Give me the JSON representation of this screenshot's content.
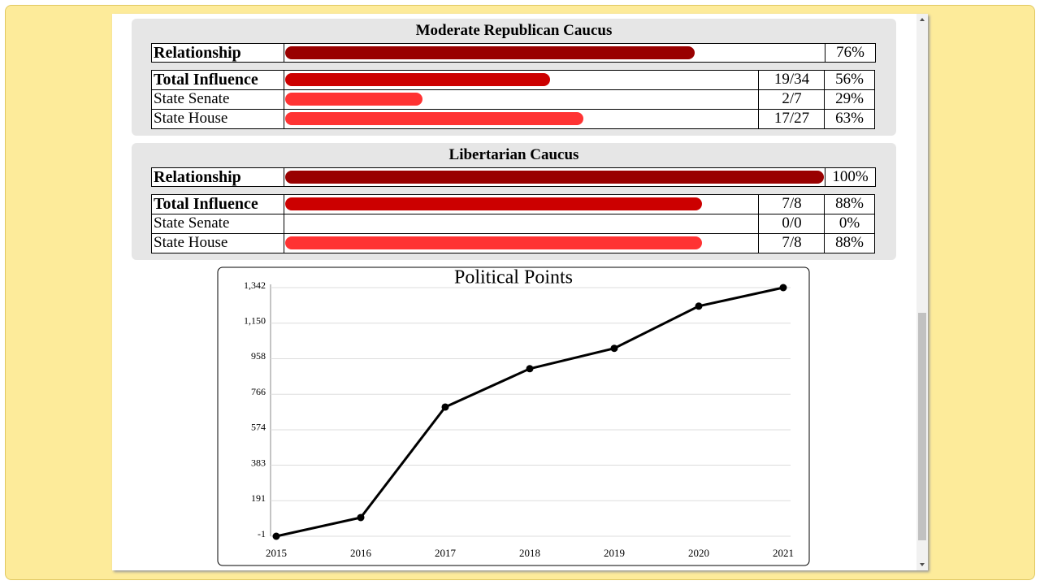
{
  "caucuses": [
    {
      "name": "Moderate Republican Caucus",
      "relationship": {
        "label": "Relationship",
        "percent": 76,
        "percent_label": "76%"
      },
      "rows": [
        {
          "label": "Total Influence",
          "fraction": "19/34",
          "percent": 56,
          "percent_label": "56%"
        },
        {
          "label": "State Senate",
          "fraction": "2/7",
          "percent": 29,
          "percent_label": "29%"
        },
        {
          "label": "State House",
          "fraction": "17/27",
          "percent": 63,
          "percent_label": "63%"
        }
      ]
    },
    {
      "name": "Libertarian Caucus",
      "relationship": {
        "label": "Relationship",
        "percent": 100,
        "percent_label": "100%"
      },
      "rows": [
        {
          "label": "Total Influence",
          "fraction": "7/8",
          "percent": 88,
          "percent_label": "88%"
        },
        {
          "label": "State Senate",
          "fraction": "0/0",
          "percent": 0,
          "percent_label": "0%"
        },
        {
          "label": "State House",
          "fraction": "7/8",
          "percent": 88,
          "percent_label": "88%"
        }
      ]
    }
  ],
  "chart_data": {
    "type": "line",
    "title": "Political Points",
    "categories": [
      "2015",
      "2016",
      "2017",
      "2018",
      "2019",
      "2020",
      "2021"
    ],
    "values": [
      -1,
      100,
      697,
      904,
      1014,
      1242,
      1342
    ],
    "color": "#000000",
    "ylim": [
      -1,
      1342
    ],
    "yticks": [
      -1,
      191,
      383,
      574,
      766,
      958,
      {
        "value": 1150,
        "label": "1,150"
      },
      {
        "value": 1342,
        "label": "1,342"
      }
    ],
    "grid": true
  }
}
